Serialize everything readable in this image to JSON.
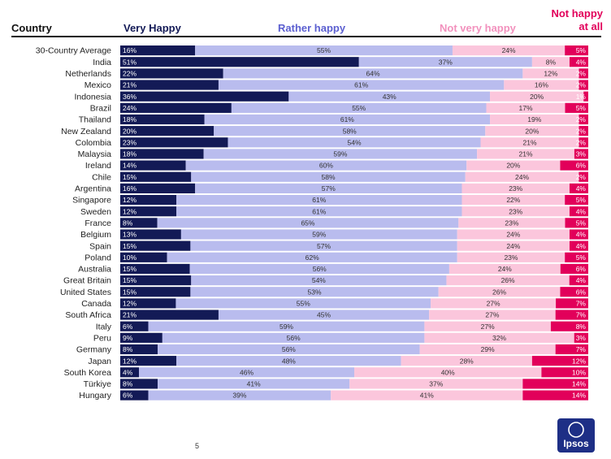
{
  "header": {
    "country": "Country",
    "very_happy": "Very Happy",
    "rather_happy": "Rather happy",
    "not_very_happy": "Not very happy",
    "not_happy_line1": "Not happy",
    "not_happy_line2": "at all"
  },
  "page_number": "5",
  "logo_text": "Ipsos",
  "chart_data": {
    "type": "bar",
    "orientation": "horizontal",
    "stacked": true,
    "percent_stacked": true,
    "categories": [
      "30-Country Average",
      "India",
      "Netherlands",
      "Mexico",
      "Indonesia",
      "Brazil",
      "Thailand",
      "New Zealand",
      "Colombia",
      "Malaysia",
      "Ireland",
      "Chile",
      "Argentina",
      "Singapore",
      "Sweden",
      "France",
      "Belgium",
      "Spain",
      "Poland",
      "Australia",
      "Great Britain",
      "United States",
      "Canada",
      "South Africa",
      "Italy",
      "Peru",
      "Germany",
      "Japan",
      "South Korea",
      "Türkiye",
      "Hungary"
    ],
    "series": [
      {
        "name": "Very Happy",
        "color": "#131a56",
        "label_color": "#ffffff",
        "values": [
          16,
          51,
          22,
          21,
          36,
          24,
          18,
          20,
          23,
          18,
          14,
          15,
          16,
          12,
          12,
          8,
          13,
          15,
          10,
          15,
          15,
          15,
          12,
          21,
          6,
          9,
          8,
          12,
          4,
          8,
          6
        ]
      },
      {
        "name": "Rather happy",
        "color": "#b9bcee",
        "label_color": "#333333",
        "values": [
          55,
          37,
          64,
          61,
          43,
          55,
          61,
          58,
          54,
          59,
          60,
          58,
          57,
          61,
          61,
          65,
          59,
          57,
          62,
          56,
          54,
          53,
          55,
          45,
          59,
          56,
          56,
          48,
          46,
          41,
          39
        ]
      },
      {
        "name": "Not very happy",
        "color": "#fbc6dc",
        "label_color": "#333333",
        "values": [
          24,
          8,
          12,
          16,
          20,
          17,
          19,
          20,
          21,
          21,
          20,
          24,
          23,
          22,
          23,
          23,
          24,
          24,
          23,
          24,
          26,
          26,
          27,
          27,
          27,
          32,
          29,
          28,
          40,
          37,
          41
        ]
      },
      {
        "name": "Not happy at all",
        "color": "#e2005a",
        "label_color": "#ffffff",
        "values": [
          5,
          4,
          2,
          2,
          1,
          5,
          2,
          2,
          2,
          3,
          6,
          2,
          4,
          5,
          4,
          5,
          4,
          4,
          5,
          6,
          4,
          6,
          7,
          7,
          8,
          3,
          7,
          12,
          10,
          14,
          14
        ]
      }
    ],
    "value_suffix": "%",
    "colors": {
      "header_very": "#131a56",
      "header_rather": "#5b5fd0",
      "header_notvery": "#f291bd",
      "header_notatall": "#e2005a"
    }
  }
}
